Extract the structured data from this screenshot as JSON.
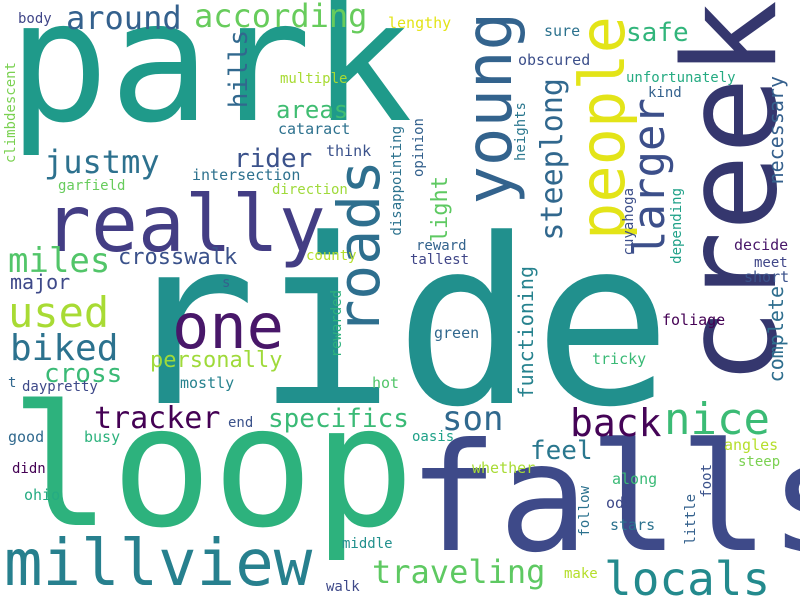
{
  "words": {
    "ride": "ride",
    "park": "park",
    "loop": "loop",
    "falls": "falls",
    "creek": "creek",
    "really": "really",
    "millview": "millview",
    "one": "one",
    "young": "young",
    "people": "people",
    "roads": "roads",
    "locals": "locals",
    "nice": "nice",
    "larger": "larger",
    "around": "around",
    "accordingto": "according",
    "justmy": "justmy",
    "used": "used",
    "biked": "biked",
    "miles": "miles",
    "tracker": "tracker",
    "son": "son",
    "back": "back",
    "traveling": "traveling",
    "specifics": "specifics",
    "crosswalk": "crosswalk",
    "rider": "rider",
    "steeplong": "steeplong",
    "safe": "safe",
    "feel": "feel",
    "cross": "cross",
    "personally": "personally",
    "hills": "hills",
    "areas": "areas",
    "major": "major",
    "functioning": "functioning",
    "light": "light",
    "complete": "complete",
    "necessary": "necessary",
    "body": "body",
    "lengthy": "lengthy",
    "sure": "sure",
    "obscured": "obscured",
    "multiple": "multiple",
    "unfortunately": "unfortunately",
    "kind": "kind",
    "cataract": "cataract",
    "think": "think",
    "intersection": "intersection",
    "garfield": "garfield",
    "direction": "direction",
    "climbdescent": "climbdescent",
    "opinion": "opinion",
    "disappointing": "disappointing",
    "heights": "heights",
    "cuyahoga": "cuyahoga",
    "decide": "decide",
    "meet": "meet",
    "short": "short",
    "depending": "depending",
    "reward": "reward",
    "tallest": "tallest",
    "county": "county",
    "s": "s",
    "rewarded": "rewarded",
    "green": "green",
    "foliage": "foliage",
    "tricky": "tricky",
    "t": "t",
    "daypretty": "daypretty",
    "mostly": "mostly",
    "hot": "hot",
    "end": "end",
    "good": "good",
    "busy": "busy",
    "oasis": "oasis",
    "angles": "angles",
    "steep": "steep",
    "didn": "didn",
    "ohio": "ohio",
    "whether": "whether",
    "along": "along",
    "odd": "odd",
    "follow": "follow",
    "little": "little",
    "foot": "foot",
    "stars": "stars",
    "middle": "middle",
    "walk": "walk",
    "make": "make"
  }
}
